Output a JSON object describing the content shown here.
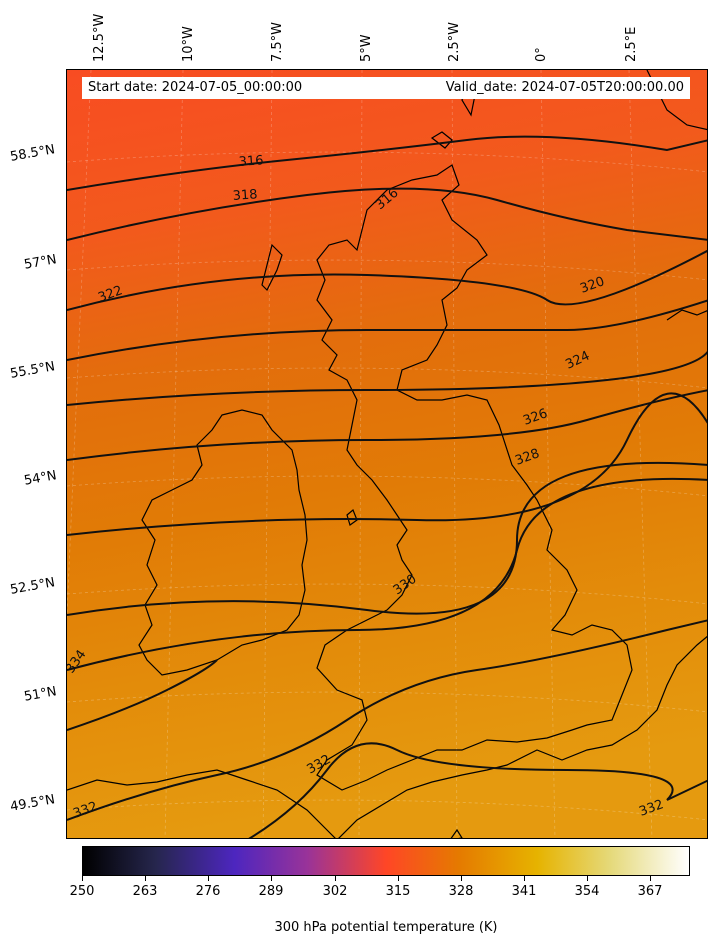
{
  "header": {
    "start_date": "Start date: 2024-07-05_00:00:00",
    "valid_date": "Valid_date: 2024-07-05T20:00:00.00"
  },
  "axes": {
    "longitude_labels": [
      "12.5°W",
      "10°W",
      "7.5°W",
      "5°W",
      "2.5°W",
      "0°",
      "2.5°E"
    ],
    "latitude_labels": [
      "58.5°N",
      "57°N",
      "55.5°N",
      "54°N",
      "52.5°N",
      "51°N",
      "49.5°N"
    ]
  },
  "contours": {
    "labels": [
      "316",
      "316",
      "318",
      "320",
      "322",
      "324",
      "326",
      "328",
      "330",
      "332",
      "332",
      "332",
      "334"
    ]
  },
  "colorbar": {
    "ticks": [
      "250",
      "263",
      "276",
      "289",
      "302",
      "315",
      "328",
      "341",
      "354",
      "367"
    ],
    "title": "300 hPa potential temperature (K)",
    "colormap": "CMRmap",
    "range": [
      250,
      376
    ]
  },
  "field": {
    "variable": "300 hPa potential temperature",
    "unit": "K",
    "colors": {
      "cold_north": "#f84c22",
      "mid": "#e17a06",
      "warm_south": "#e4970c"
    }
  }
}
